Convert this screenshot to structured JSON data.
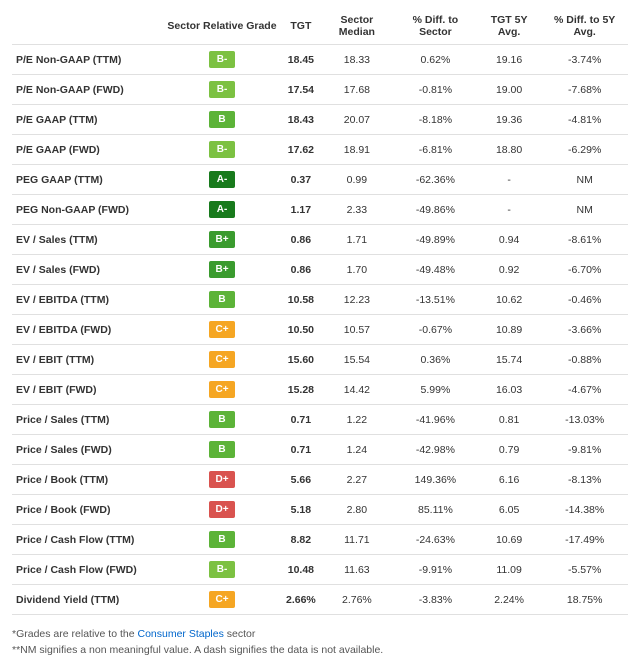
{
  "grade_colors": {
    "A-": "#187a1c",
    "B+": "#3a9b2e",
    "B": "#5cb338",
    "B-": "#7cc142",
    "C+": "#f5a623",
    "D+": "#d9534f"
  },
  "columns": [
    "",
    "Sector Relative Grade",
    "TGT",
    "Sector Median",
    "% Diff. to Sector",
    "TGT 5Y Avg.",
    "% Diff. to 5Y Avg."
  ],
  "rows": [
    {
      "metric": "P/E Non-GAAP (TTM)",
      "grade": "B-",
      "tgt": "18.45",
      "median": "18.33",
      "diff_sector": "0.62%",
      "avg5": "19.16",
      "diff5": "-3.74%"
    },
    {
      "metric": "P/E Non-GAAP (FWD)",
      "grade": "B-",
      "tgt": "17.54",
      "median": "17.68",
      "diff_sector": "-0.81%",
      "avg5": "19.00",
      "diff5": "-7.68%"
    },
    {
      "metric": "P/E GAAP (TTM)",
      "grade": "B",
      "tgt": "18.43",
      "median": "20.07",
      "diff_sector": "-8.18%",
      "avg5": "19.36",
      "diff5": "-4.81%"
    },
    {
      "metric": "P/E GAAP (FWD)",
      "grade": "B-",
      "tgt": "17.62",
      "median": "18.91",
      "diff_sector": "-6.81%",
      "avg5": "18.80",
      "diff5": "-6.29%"
    },
    {
      "metric": "PEG GAAP (TTM)",
      "grade": "A-",
      "tgt": "0.37",
      "median": "0.99",
      "diff_sector": "-62.36%",
      "avg5": "-",
      "diff5": "NM"
    },
    {
      "metric": "PEG Non-GAAP (FWD)",
      "grade": "A-",
      "tgt": "1.17",
      "median": "2.33",
      "diff_sector": "-49.86%",
      "avg5": "-",
      "diff5": "NM"
    },
    {
      "metric": "EV / Sales (TTM)",
      "grade": "B+",
      "tgt": "0.86",
      "median": "1.71",
      "diff_sector": "-49.89%",
      "avg5": "0.94",
      "diff5": "-8.61%"
    },
    {
      "metric": "EV / Sales (FWD)",
      "grade": "B+",
      "tgt": "0.86",
      "median": "1.70",
      "diff_sector": "-49.48%",
      "avg5": "0.92",
      "diff5": "-6.70%"
    },
    {
      "metric": "EV / EBITDA (TTM)",
      "grade": "B",
      "tgt": "10.58",
      "median": "12.23",
      "diff_sector": "-13.51%",
      "avg5": "10.62",
      "diff5": "-0.46%"
    },
    {
      "metric": "EV / EBITDA (FWD)",
      "grade": "C+",
      "tgt": "10.50",
      "median": "10.57",
      "diff_sector": "-0.67%",
      "avg5": "10.89",
      "diff5": "-3.66%"
    },
    {
      "metric": "EV / EBIT (TTM)",
      "grade": "C+",
      "tgt": "15.60",
      "median": "15.54",
      "diff_sector": "0.36%",
      "avg5": "15.74",
      "diff5": "-0.88%"
    },
    {
      "metric": "EV / EBIT (FWD)",
      "grade": "C+",
      "tgt": "15.28",
      "median": "14.42",
      "diff_sector": "5.99%",
      "avg5": "16.03",
      "diff5": "-4.67%"
    },
    {
      "metric": "Price / Sales (TTM)",
      "grade": "B",
      "tgt": "0.71",
      "median": "1.22",
      "diff_sector": "-41.96%",
      "avg5": "0.81",
      "diff5": "-13.03%"
    },
    {
      "metric": "Price / Sales (FWD)",
      "grade": "B",
      "tgt": "0.71",
      "median": "1.24",
      "diff_sector": "-42.98%",
      "avg5": "0.79",
      "diff5": "-9.81%"
    },
    {
      "metric": "Price / Book (TTM)",
      "grade": "D+",
      "tgt": "5.66",
      "median": "2.27",
      "diff_sector": "149.36%",
      "avg5": "6.16",
      "diff5": "-8.13%"
    },
    {
      "metric": "Price / Book (FWD)",
      "grade": "D+",
      "tgt": "5.18",
      "median": "2.80",
      "diff_sector": "85.11%",
      "avg5": "6.05",
      "diff5": "-14.38%"
    },
    {
      "metric": "Price / Cash Flow (TTM)",
      "grade": "B",
      "tgt": "8.82",
      "median": "11.71",
      "diff_sector": "-24.63%",
      "avg5": "10.69",
      "diff5": "-17.49%"
    },
    {
      "metric": "Price / Cash Flow (FWD)",
      "grade": "B-",
      "tgt": "10.48",
      "median": "11.63",
      "diff_sector": "-9.91%",
      "avg5": "11.09",
      "diff5": "-5.57%"
    },
    {
      "metric": "Dividend Yield (TTM)",
      "grade": "C+",
      "tgt": "2.66%",
      "median": "2.76%",
      "diff_sector": "-3.83%",
      "avg5": "2.24%",
      "diff5": "18.75%"
    }
  ],
  "footnote1_pre": "*Grades are relative to the ",
  "footnote1_link": "Consumer Staples",
  "footnote1_post": " sector",
  "footnote2": "**NM signifies a non meaningful value. A dash signifies the data is not available."
}
